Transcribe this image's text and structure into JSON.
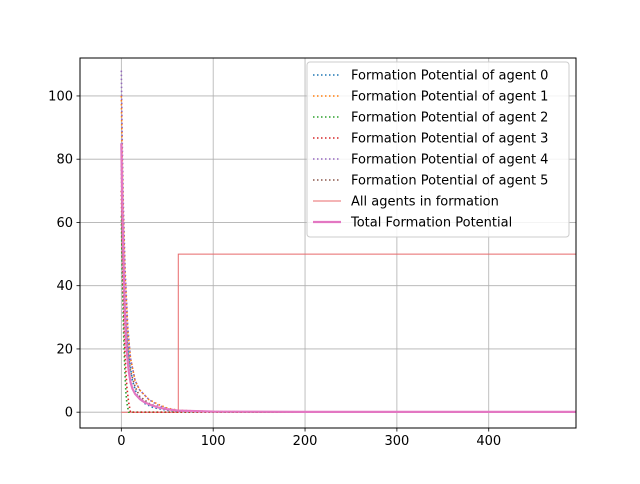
{
  "chart_data": {
    "type": "line",
    "title": "",
    "xlabel": "",
    "ylabel": "",
    "xlim": [
      -45,
      495
    ],
    "ylim": [
      -5,
      112
    ],
    "x_ticks": [
      0,
      100,
      200,
      300,
      400
    ],
    "y_ticks": [
      0,
      20,
      40,
      60,
      80,
      100
    ],
    "grid": true,
    "legend_position": "top-right",
    "colors": {
      "agent0": "#1f77b4",
      "agent1": "#ff7f0e",
      "agent2": "#2ca02c",
      "agent3": "#d62728",
      "agent4": "#9467bd",
      "agent5": "#8c564b",
      "in_formation": "#e8696b",
      "total": "#e377c2"
    },
    "series": [
      {
        "name": "Formation Potential of agent 0",
        "style": "dotted",
        "x": [
          0,
          1,
          2,
          3,
          5,
          8,
          12,
          17,
          25,
          35,
          50,
          62,
          100,
          200,
          300,
          400,
          495
        ],
        "y": [
          85,
          68,
          55,
          45,
          31,
          18,
          10,
          5.5,
          2.8,
          1.4,
          0.6,
          0.3,
          0.1,
          0,
          0,
          0,
          0
        ]
      },
      {
        "name": "Formation Potential of agent 1",
        "style": "dotted",
        "x": [
          0,
          1,
          2,
          4,
          7,
          10,
          15,
          20,
          30,
          40,
          50,
          62,
          100,
          200,
          300,
          400,
          495
        ],
        "y": [
          100,
          80,
          64,
          44,
          26,
          17,
          10,
          7,
          4,
          2.5,
          1.3,
          0.6,
          0.2,
          0,
          0,
          0,
          0
        ]
      },
      {
        "name": "Formation Potential of agent 2",
        "style": "dotted",
        "x": [
          0,
          1,
          2,
          3,
          4,
          5,
          6,
          8,
          100,
          200,
          300,
          400,
          495
        ],
        "y": [
          62,
          44,
          30,
          20,
          12,
          6,
          3,
          0,
          0,
          0,
          0,
          0,
          0
        ]
      },
      {
        "name": "Formation Potential of agent 3",
        "style": "dotted",
        "x": [
          0,
          1,
          2,
          3,
          4,
          6,
          8,
          10,
          100,
          200,
          300,
          400,
          495
        ],
        "y": [
          70,
          52,
          38,
          27,
          18,
          8,
          3,
          0,
          0,
          0,
          0,
          0,
          0
        ]
      },
      {
        "name": "Formation Potential of agent 4",
        "style": "dotted",
        "x": [
          0,
          1,
          2,
          4,
          7,
          10,
          15,
          20,
          30,
          40,
          50,
          62,
          100,
          200,
          300,
          400,
          495
        ],
        "y": [
          108,
          86,
          68,
          46,
          27,
          17,
          10,
          7,
          4,
          2.2,
          1.1,
          0.5,
          0.2,
          0,
          0,
          0,
          0
        ]
      },
      {
        "name": "Formation Potential of agent 5",
        "style": "dotted",
        "x": [
          0,
          1,
          2,
          4,
          7,
          10,
          15,
          20,
          30,
          40,
          50,
          62,
          100,
          200,
          300,
          400,
          495
        ],
        "y": [
          78,
          60,
          47,
          32,
          20,
          13,
          8,
          5,
          2.8,
          1.6,
          0.8,
          0.4,
          0.1,
          0,
          0,
          0,
          0
        ]
      },
      {
        "name": "All agents in formation",
        "style": "thin",
        "x": [
          0,
          62,
          62,
          495
        ],
        "y": [
          0,
          0,
          50,
          50
        ]
      },
      {
        "name": "Total Formation Potential",
        "style": "thick",
        "x": [
          0,
          1,
          2,
          3,
          4,
          5,
          6,
          8,
          10,
          12,
          15,
          20,
          25,
          30,
          40,
          50,
          62,
          100,
          200,
          300,
          400,
          495
        ],
        "y": [
          85,
          66,
          52,
          40,
          31,
          24,
          19,
          13,
          9.5,
          7.5,
          5.8,
          4.2,
          3.2,
          2.5,
          1.5,
          0.9,
          0.5,
          0.2,
          0.1,
          0.1,
          0.1,
          0.1
        ]
      }
    ]
  }
}
